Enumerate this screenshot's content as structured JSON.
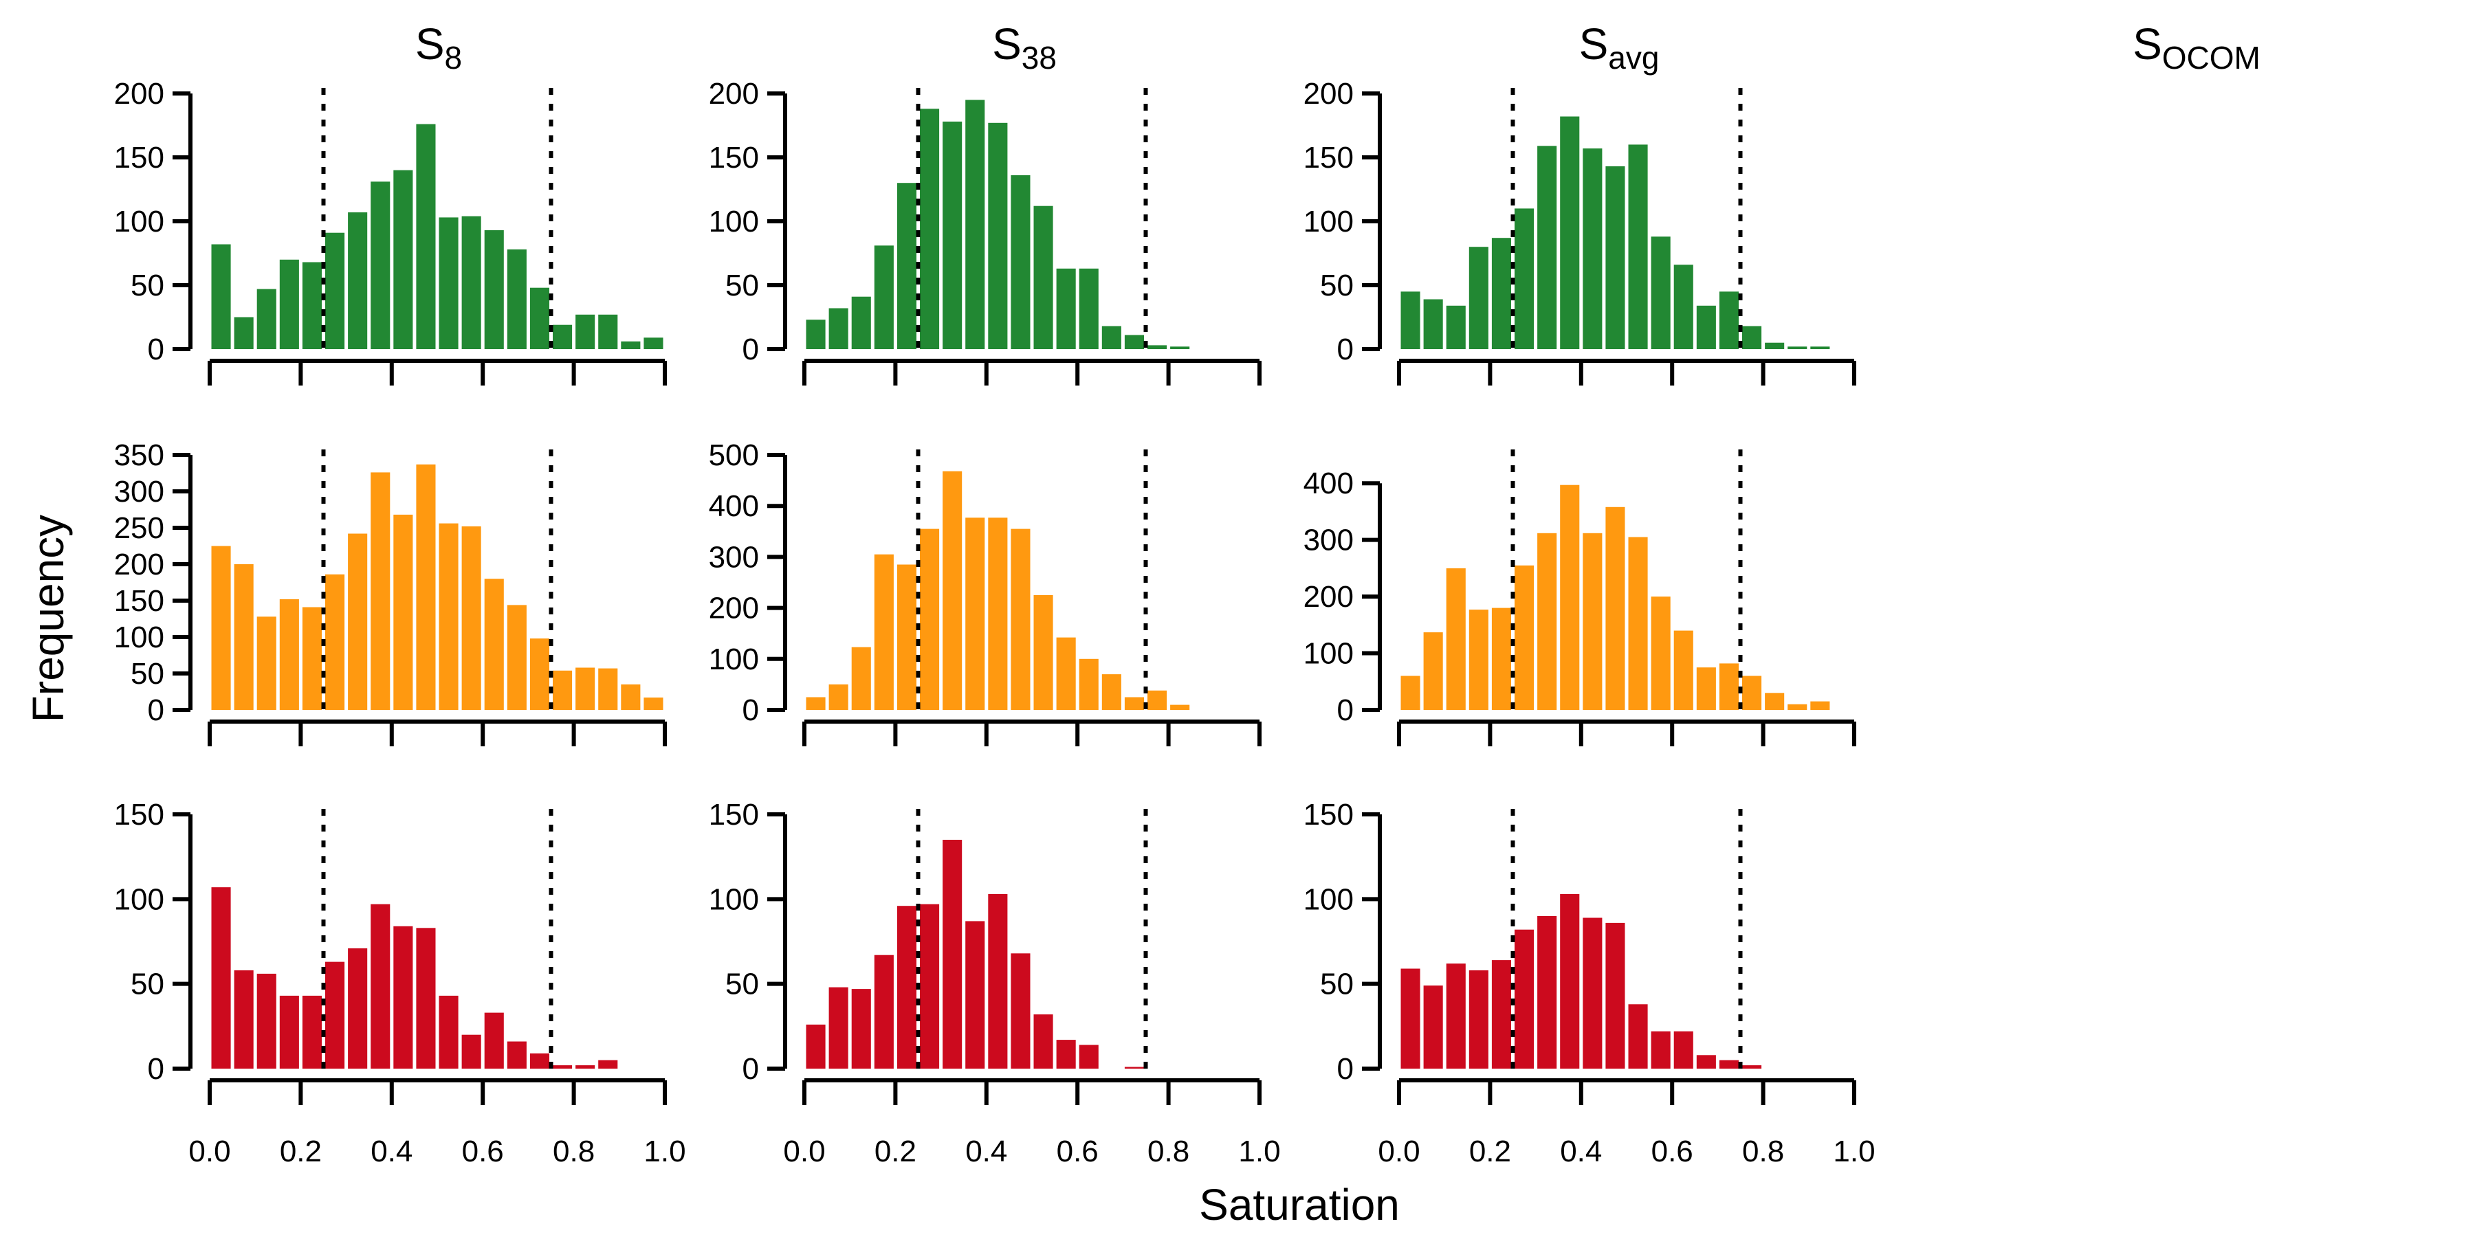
{
  "figure": {
    "ylabel": "Frequency",
    "xlabel": "Saturation",
    "columns": [
      {
        "main": "S",
        "sub": "8"
      },
      {
        "main": "S",
        "sub": "38"
      },
      {
        "main": "S",
        "sub": "avg"
      },
      {
        "main": "S",
        "sub": "OCOM"
      }
    ]
  },
  "colors": {
    "green": "#228833",
    "orange": "#FF9910",
    "red": "#CC0A1E"
  },
  "chart_data": [
    {
      "type": "bar",
      "row": 0,
      "col": 0,
      "color": "green",
      "bin_width": 0.05,
      "xlim": [
        0,
        1
      ],
      "x_ticks": [
        0.0,
        0.2,
        0.4,
        0.6,
        0.8,
        1.0
      ],
      "ylim": [
        0,
        200
      ],
      "y_ticks": [
        0,
        50,
        100,
        150,
        200
      ],
      "reference_lines": [
        0.25,
        0.75
      ],
      "values": [
        82,
        25,
        47,
        70,
        68,
        91,
        107,
        131,
        140,
        176,
        103,
        104,
        93,
        78,
        48,
        19,
        27,
        27,
        6,
        9
      ]
    },
    {
      "type": "bar",
      "row": 0,
      "col": 1,
      "color": "green",
      "bin_width": 0.05,
      "xlim": [
        0,
        1
      ],
      "x_ticks": [
        0.0,
        0.2,
        0.4,
        0.6,
        0.8,
        1.0
      ],
      "ylim": [
        0,
        200
      ],
      "y_ticks": [
        0,
        50,
        100,
        150,
        200
      ],
      "reference_lines": [
        0.25,
        0.75
      ],
      "values": [
        23,
        32,
        41,
        81,
        130,
        188,
        178,
        195,
        177,
        136,
        112,
        63,
        63,
        18,
        11,
        3,
        2,
        0,
        0,
        0
      ]
    },
    {
      "type": "bar",
      "row": 0,
      "col": 2,
      "color": "green",
      "bin_width": 0.05,
      "xlim": [
        0,
        1
      ],
      "x_ticks": [
        0.0,
        0.2,
        0.4,
        0.6,
        0.8,
        1.0
      ],
      "ylim": [
        0,
        200
      ],
      "y_ticks": [
        0,
        50,
        100,
        150,
        200
      ],
      "reference_lines": [
        0.25,
        0.75
      ],
      "values": [
        45,
        39,
        34,
        80,
        87,
        110,
        159,
        182,
        157,
        143,
        160,
        88,
        66,
        34,
        45,
        18,
        5,
        2,
        2,
        0
      ]
    },
    {
      "type": "bar",
      "row": 1,
      "col": 0,
      "color": "orange",
      "bin_width": 0.05,
      "xlim": [
        0,
        1
      ],
      "x_ticks": [
        0.0,
        0.2,
        0.4,
        0.6,
        0.8,
        1.0
      ],
      "ylim": [
        0,
        350
      ],
      "y_ticks": [
        0,
        50,
        100,
        150,
        200,
        250,
        300,
        350
      ],
      "reference_lines": [
        0.25,
        0.75
      ],
      "values": [
        225,
        200,
        128,
        152,
        141,
        186,
        242,
        326,
        268,
        337,
        256,
        252,
        180,
        144,
        98,
        54,
        58,
        57,
        35,
        17
      ]
    },
    {
      "type": "bar",
      "row": 1,
      "col": 1,
      "color": "orange",
      "bin_width": 0.05,
      "xlim": [
        0,
        1
      ],
      "x_ticks": [
        0.0,
        0.2,
        0.4,
        0.6,
        0.8,
        1.0
      ],
      "ylim": [
        0,
        500
      ],
      "y_ticks": [
        0,
        100,
        200,
        300,
        400,
        500
      ],
      "reference_lines": [
        0.25,
        0.75
      ],
      "values": [
        25,
        50,
        123,
        305,
        285,
        355,
        468,
        377,
        377,
        355,
        225,
        142,
        100,
        70,
        25,
        38,
        10,
        0,
        0,
        0
      ]
    },
    {
      "type": "bar",
      "row": 1,
      "col": 2,
      "color": "orange",
      "bin_width": 0.05,
      "xlim": [
        0,
        1
      ],
      "x_ticks": [
        0.0,
        0.2,
        0.4,
        0.6,
        0.8,
        1.0
      ],
      "ylim": [
        0,
        450
      ],
      "y_ticks": [
        0,
        100,
        200,
        300,
        400
      ],
      "reference_lines": [
        0.25,
        0.75
      ],
      "values": [
        60,
        137,
        250,
        177,
        180,
        255,
        312,
        397,
        312,
        358,
        305,
        200,
        140,
        75,
        82,
        60,
        30,
        10,
        15,
        0
      ]
    },
    {
      "type": "bar",
      "row": 2,
      "col": 0,
      "color": "red",
      "bin_width": 0.05,
      "xlim": [
        0,
        1
      ],
      "x_ticks": [
        0.0,
        0.2,
        0.4,
        0.6,
        0.8,
        1.0
      ],
      "ylim": [
        0,
        150
      ],
      "y_ticks": [
        0,
        50,
        100,
        150
      ],
      "reference_lines": [
        0.25,
        0.75
      ],
      "values": [
        107,
        58,
        56,
        43,
        43,
        63,
        71,
        97,
        84,
        83,
        43,
        20,
        33,
        16,
        9,
        2,
        2,
        5,
        0,
        0
      ]
    },
    {
      "type": "bar",
      "row": 2,
      "col": 1,
      "color": "red",
      "bin_width": 0.05,
      "xlim": [
        0,
        1
      ],
      "x_ticks": [
        0.0,
        0.2,
        0.4,
        0.6,
        0.8,
        1.0
      ],
      "ylim": [
        0,
        150
      ],
      "y_ticks": [
        0,
        50,
        100,
        150
      ],
      "reference_lines": [
        0.25,
        0.75
      ],
      "values": [
        26,
        48,
        47,
        67,
        96,
        97,
        135,
        87,
        103,
        68,
        32,
        17,
        14,
        0,
        1,
        0,
        0,
        0,
        0,
        0
      ]
    },
    {
      "type": "bar",
      "row": 2,
      "col": 2,
      "color": "red",
      "bin_width": 0.05,
      "xlim": [
        0,
        1
      ],
      "x_ticks": [
        0.0,
        0.2,
        0.4,
        0.6,
        0.8,
        1.0
      ],
      "ylim": [
        0,
        150
      ],
      "y_ticks": [
        0,
        50,
        100,
        150
      ],
      "reference_lines": [
        0.25,
        0.75
      ],
      "values": [
        59,
        49,
        62,
        58,
        64,
        82,
        90,
        103,
        89,
        86,
        38,
        22,
        22,
        8,
        5,
        2,
        0,
        0,
        0,
        0
      ]
    }
  ]
}
